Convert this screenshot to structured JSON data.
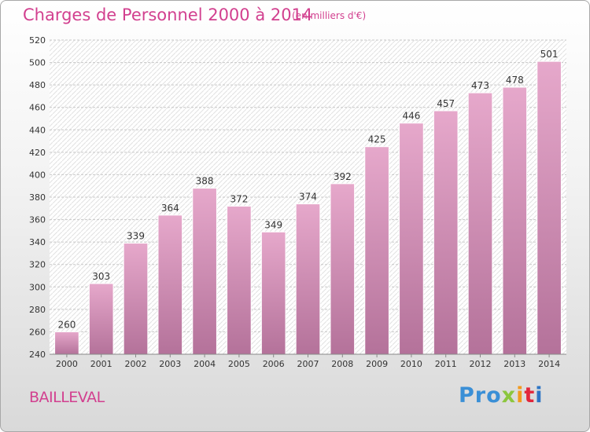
{
  "title": "Charges de Personnel 2000 à 2014",
  "subtitle": "(en milliers d'€)",
  "commune": "BAILLEVAL",
  "logo": {
    "letters": [
      "Pro",
      "x",
      "i",
      "t",
      "i"
    ],
    "text": "Proxiti"
  },
  "colors": {
    "accent": "#d2408f",
    "bar_top": "#e6a8cb",
    "bar_bottom": "#b4729a"
  },
  "chart_data": {
    "type": "bar",
    "categories": [
      "2000",
      "2001",
      "2002",
      "2003",
      "2004",
      "2005",
      "2006",
      "2007",
      "2008",
      "2009",
      "2010",
      "2011",
      "2012",
      "2013",
      "2014"
    ],
    "values": [
      260,
      303,
      339,
      364,
      388,
      372,
      349,
      374,
      392,
      425,
      446,
      457,
      473,
      478,
      501
    ],
    "ylim": [
      240,
      520
    ],
    "yticks": [
      240,
      260,
      280,
      300,
      320,
      340,
      360,
      380,
      400,
      420,
      440,
      460,
      480,
      500,
      520
    ],
    "grid": true,
    "xlabel": "",
    "ylabel": ""
  }
}
